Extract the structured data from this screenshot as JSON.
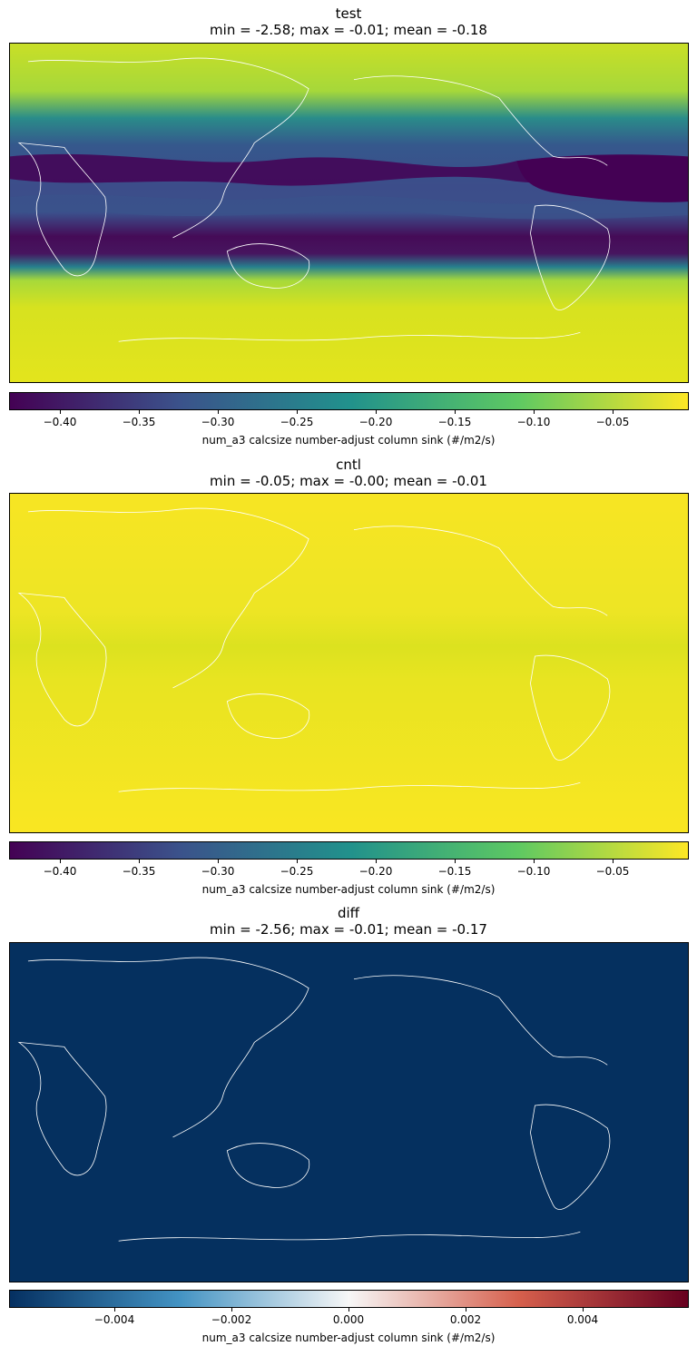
{
  "chart_data": [
    {
      "type": "heatmap",
      "title": "test",
      "subtitle": "min = -2.58; max = -0.01; mean = -0.18",
      "colormap": "viridis",
      "colorbar": {
        "label": "num_a3 calcsize number-adjust column sink (#/m2/s)",
        "range": [
          -0.43,
          0.0
        ],
        "ticks": [
          -0.4,
          -0.35,
          -0.3,
          -0.25,
          -0.2,
          -0.15,
          -0.1,
          -0.05
        ],
        "tick_labels": [
          "−0.40",
          "−0.35",
          "−0.30",
          "−0.25",
          "−0.20",
          "−0.15",
          "−0.10",
          "−0.05"
        ]
      }
    },
    {
      "type": "heatmap",
      "title": "cntl",
      "subtitle": "min = -0.05; max = -0.00; mean = -0.01",
      "colormap": "viridis",
      "colorbar": {
        "label": "num_a3 calcsize number-adjust column sink (#/m2/s)",
        "range": [
          -0.43,
          0.0
        ],
        "ticks": [
          -0.4,
          -0.35,
          -0.3,
          -0.25,
          -0.2,
          -0.15,
          -0.1,
          -0.05
        ],
        "tick_labels": [
          "−0.40",
          "−0.35",
          "−0.30",
          "−0.25",
          "−0.20",
          "−0.15",
          "−0.10",
          "−0.05"
        ]
      }
    },
    {
      "type": "heatmap",
      "title": "diff",
      "subtitle": "min = -2.56; max = -0.01; mean = -0.17",
      "colormap": "RdBu_r",
      "colorbar": {
        "label": "num_a3 calcsize number-adjust column sink (#/m2/s)",
        "range": [
          -0.0058,
          0.0058
        ],
        "ticks": [
          -0.004,
          -0.002,
          0.0,
          0.002,
          0.004
        ],
        "tick_labels": [
          "−0.004",
          "−0.002",
          "0.000",
          "0.002",
          "0.004"
        ]
      }
    }
  ],
  "colors": {
    "viridis": [
      "#440154",
      "#3b528b",
      "#21918c",
      "#5ec962",
      "#fde725"
    ],
    "rdbu_r": [
      "#053061",
      "#4393c3",
      "#f7f7f7",
      "#d6604d",
      "#67001f"
    ],
    "diff_field": "#05305f",
    "cntl_field": "#f7e523",
    "coastline": "#ffffff"
  }
}
